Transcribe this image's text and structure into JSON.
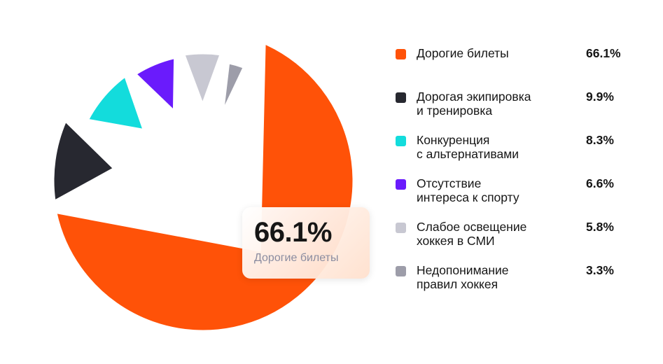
{
  "chart_data": {
    "type": "pie",
    "title": "",
    "series": [
      {
        "values": [
          66.1,
          9.9,
          8.3,
          6.6,
          5.8,
          3.3
        ],
        "labels": [
          "Дорогие билеты",
          "Дорогая экипировка и тренировка",
          "Конкуренция с альтернативами",
          "Отсутствие интереса к спорту",
          "Слабое освещение хоккея в СМИ",
          "Недопонимание правил хоккея"
        ]
      }
    ],
    "legend": "right",
    "highlighted": "Дорогие билеты"
  },
  "legend": [
    {
      "line1": "Дорогие билеты",
      "line2": "",
      "value": "66.1%",
      "color": "#ff5208"
    },
    {
      "line1": "Дорогая экипировка",
      "line2": "и тренировка",
      "value": "9.9%",
      "color": "#272830"
    },
    {
      "line1": "Конкуренция",
      "line2": "с альтернативами",
      "value": "8.3%",
      "color": "#13dcdc"
    },
    {
      "line1": "Отсутствие",
      "line2": "интереса к спорту",
      "value": "6.6%",
      "color": "#6a1bfc"
    },
    {
      "line1": "Слабое освещение",
      "line2": "хоккея в СМИ",
      "value": "5.8%",
      "color": "#c8c8d2"
    },
    {
      "line1": "Недопонимание",
      "line2": "правил хоккея",
      "value": "3.3%",
      "color": "#9d9da9"
    }
  ],
  "tooltip": {
    "value": "66.1%",
    "label": "Дорогие билеты"
  }
}
